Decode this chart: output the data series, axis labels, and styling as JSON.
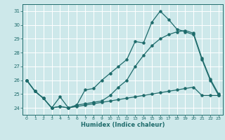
{
  "xlabel": "Humidex (Indice chaleur)",
  "background_color": "#cde8ea",
  "grid_color": "#ffffff",
  "line_color": "#1e6b6b",
  "xlim": [
    -0.5,
    23.5
  ],
  "ylim": [
    23.5,
    31.5
  ],
  "yticks": [
    24,
    25,
    26,
    27,
    28,
    29,
    30,
    31
  ],
  "xticks": [
    0,
    1,
    2,
    3,
    4,
    5,
    6,
    7,
    8,
    9,
    10,
    11,
    12,
    13,
    14,
    15,
    16,
    17,
    18,
    19,
    20,
    21,
    22,
    23
  ],
  "line1": [
    26.0,
    25.2,
    24.7,
    24.0,
    24.8,
    24.0,
    24.2,
    25.3,
    25.4,
    26.0,
    26.5,
    27.0,
    27.5,
    28.8,
    28.7,
    30.2,
    31.0,
    30.4,
    29.7,
    29.5,
    29.3,
    27.5,
    26.0,
    24.9
  ],
  "line2": [
    26.0,
    25.2,
    24.7,
    24.0,
    24.1,
    24.0,
    24.2,
    24.3,
    24.4,
    24.5,
    24.9,
    25.5,
    26.0,
    27.0,
    27.8,
    28.5,
    29.0,
    29.3,
    29.5,
    29.6,
    29.4,
    27.6,
    26.1,
    25.0
  ],
  "line3": [
    26.0,
    25.2,
    24.7,
    24.0,
    24.1,
    24.0,
    24.1,
    24.2,
    24.3,
    24.4,
    24.5,
    24.6,
    24.7,
    24.8,
    24.9,
    25.0,
    25.1,
    25.2,
    25.3,
    25.4,
    25.5,
    24.9,
    24.9,
    24.9
  ]
}
